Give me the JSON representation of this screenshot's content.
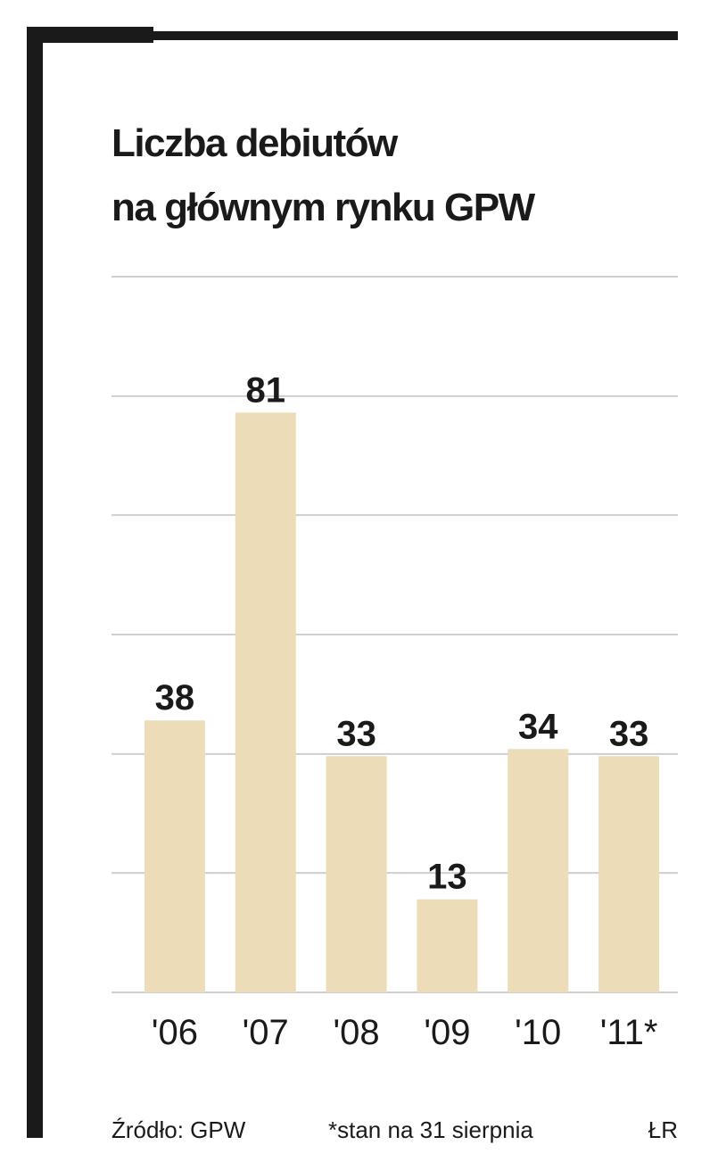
{
  "chart_data": {
    "type": "bar",
    "title": "Liczba debiutów na głównym rynku GPW",
    "categories": [
      "'06",
      "'07",
      "'08",
      "'09",
      "'10",
      "'11*"
    ],
    "values": [
      38,
      81,
      33,
      13,
      34,
      33
    ],
    "color": "#ecdcb8",
    "ylim": [
      0,
      100
    ],
    "yticks": [
      0,
      16.7,
      33.3,
      50,
      66.7,
      83.3,
      100
    ],
    "grid": true,
    "source": "Źródło: GPW",
    "note": "*stan na 31 sierpnia",
    "author": "ŁR"
  }
}
